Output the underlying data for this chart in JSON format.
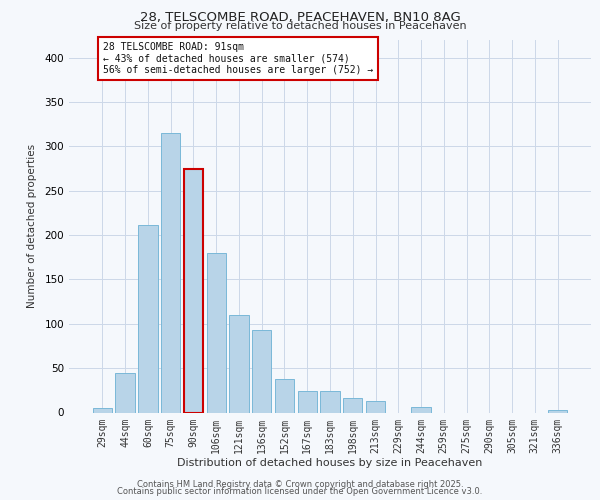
{
  "title1": "28, TELSCOMBE ROAD, PEACEHAVEN, BN10 8AG",
  "title2": "Size of property relative to detached houses in Peacehaven",
  "xlabel": "Distribution of detached houses by size in Peacehaven",
  "ylabel": "Number of detached properties",
  "categories": [
    "29sqm",
    "44sqm",
    "60sqm",
    "75sqm",
    "90sqm",
    "106sqm",
    "121sqm",
    "136sqm",
    "152sqm",
    "167sqm",
    "183sqm",
    "198sqm",
    "213sqm",
    "229sqm",
    "244sqm",
    "259sqm",
    "275sqm",
    "290sqm",
    "305sqm",
    "321sqm",
    "336sqm"
  ],
  "values": [
    5,
    44,
    211,
    315,
    275,
    180,
    110,
    93,
    38,
    24,
    24,
    16,
    13,
    0,
    6,
    0,
    0,
    0,
    0,
    0,
    3
  ],
  "bar_color": "#b8d4e8",
  "bar_edge_color": "#7ab8d8",
  "highlight_bar_index": 4,
  "highlight_edge_color": "#cc0000",
  "annotation_box_text": "28 TELSCOMBE ROAD: 91sqm\n← 43% of detached houses are smaller (574)\n56% of semi-detached houses are larger (752) →",
  "ylim": [
    0,
    420
  ],
  "yticks": [
    0,
    50,
    100,
    150,
    200,
    250,
    300,
    350,
    400
  ],
  "footer1": "Contains HM Land Registry data © Crown copyright and database right 2025.",
  "footer2": "Contains public sector information licensed under the Open Government Licence v3.0.",
  "bg_color": "#f5f8fc",
  "grid_color": "#ccd8e8"
}
